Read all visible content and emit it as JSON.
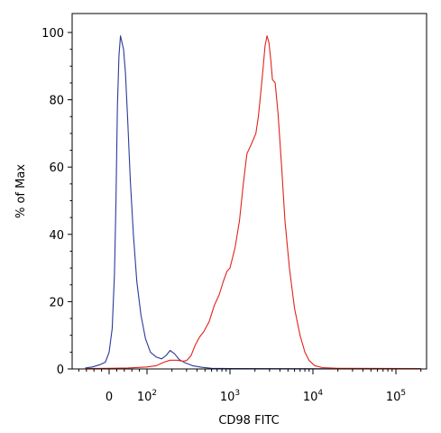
{
  "chart_data": {
    "type": "line",
    "title": "",
    "xlabel": "CD98 FITC",
    "ylabel": "% of Max",
    "x_scale": "biexponential",
    "x_ticks": [
      {
        "value": 0,
        "label": "0"
      },
      {
        "value": 100,
        "label": "10",
        "sup": "2"
      },
      {
        "value": 1000,
        "label": "10",
        "sup": "3"
      },
      {
        "value": 10000,
        "label": "10",
        "sup": "4"
      },
      {
        "value": 100000,
        "label": "10",
        "sup": "5"
      }
    ],
    "y_ticks": [
      {
        "value": 0,
        "label": "0"
      },
      {
        "value": 20,
        "label": "20"
      },
      {
        "value": 40,
        "label": "40"
      },
      {
        "value": 60,
        "label": "60"
      },
      {
        "value": 80,
        "label": "80"
      },
      {
        "value": 100,
        "label": "100"
      }
    ],
    "ylim": [
      0,
      100
    ],
    "grid": false,
    "series": [
      {
        "color": "#2b3a9a",
        "points": [
          [
            -63,
            0.3
          ],
          [
            -44,
            0.6
          ],
          [
            -24,
            1.3
          ],
          [
            -10,
            2
          ],
          [
            0,
            5
          ],
          [
            8,
            12
          ],
          [
            14,
            28
          ],
          [
            18,
            50
          ],
          [
            22,
            78
          ],
          [
            26,
            93
          ],
          [
            30,
            99
          ],
          [
            34,
            97
          ],
          [
            38,
            95
          ],
          [
            43,
            88
          ],
          [
            49,
            74
          ],
          [
            56,
            56
          ],
          [
            64,
            40
          ],
          [
            73,
            26
          ],
          [
            84,
            16
          ],
          [
            96,
            9
          ],
          [
            110,
            5
          ],
          [
            130,
            3.5
          ],
          [
            150,
            3
          ],
          [
            170,
            4
          ],
          [
            190,
            5.5
          ],
          [
            215,
            4.5
          ],
          [
            245,
            2.8
          ],
          [
            290,
            1.8
          ],
          [
            350,
            1
          ],
          [
            450,
            0.5
          ],
          [
            600,
            0.2
          ],
          [
            1000,
            0.1
          ],
          [
            100000,
            0.05
          ],
          [
            200000,
            0.05
          ]
        ]
      },
      {
        "color": "#e0231c",
        "points": [
          [
            -63,
            0.1
          ],
          [
            0,
            0.2
          ],
          [
            50,
            0.3
          ],
          [
            100,
            0.6
          ],
          [
            130,
            1
          ],
          [
            160,
            2
          ],
          [
            190,
            2.6
          ],
          [
            230,
            2.6
          ],
          [
            270,
            2.3
          ],
          [
            300,
            2.5
          ],
          [
            340,
            4
          ],
          [
            380,
            7
          ],
          [
            430,
            9.5
          ],
          [
            480,
            11
          ],
          [
            560,
            14
          ],
          [
            650,
            19
          ],
          [
            740,
            22
          ],
          [
            830,
            26
          ],
          [
            920,
            29
          ],
          [
            1000,
            30
          ],
          [
            1150,
            36
          ],
          [
            1300,
            44
          ],
          [
            1450,
            55
          ],
          [
            1600,
            64
          ],
          [
            1750,
            66
          ],
          [
            1900,
            68
          ],
          [
            2050,
            70
          ],
          [
            2200,
            75
          ],
          [
            2350,
            82
          ],
          [
            2500,
            89
          ],
          [
            2650,
            96
          ],
          [
            2800,
            99
          ],
          [
            2950,
            97
          ],
          [
            3100,
            92
          ],
          [
            3250,
            86
          ],
          [
            3500,
            85
          ],
          [
            3800,
            76
          ],
          [
            4200,
            60
          ],
          [
            4600,
            44
          ],
          [
            5200,
            30
          ],
          [
            6000,
            18
          ],
          [
            7000,
            10
          ],
          [
            8000,
            5
          ],
          [
            9000,
            2.5
          ],
          [
            10500,
            1
          ],
          [
            13000,
            0.4
          ],
          [
            20000,
            0.2
          ],
          [
            200000,
            0.1
          ]
        ]
      }
    ]
  }
}
